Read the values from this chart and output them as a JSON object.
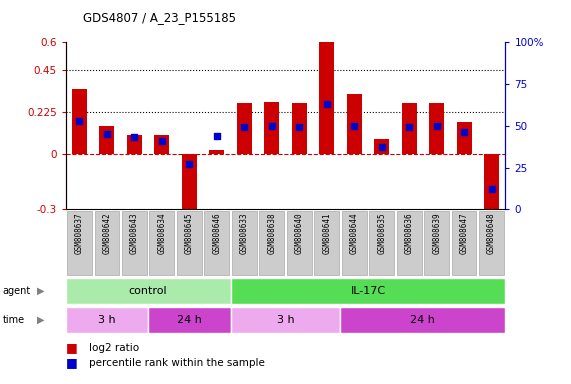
{
  "title": "GDS4807 / A_23_P155185",
  "samples": [
    "GSM808637",
    "GSM808642",
    "GSM808643",
    "GSM808634",
    "GSM808645",
    "GSM808646",
    "GSM808633",
    "GSM808638",
    "GSM808640",
    "GSM808641",
    "GSM808644",
    "GSM808635",
    "GSM808636",
    "GSM808639",
    "GSM808647",
    "GSM808648"
  ],
  "log2_ratio": [
    0.35,
    0.15,
    0.1,
    0.1,
    -0.38,
    0.02,
    0.27,
    0.28,
    0.27,
    0.6,
    0.32,
    0.08,
    0.27,
    0.27,
    0.17,
    -0.33
  ],
  "percentile": [
    53,
    45,
    43,
    41,
    27,
    44,
    49,
    50,
    49,
    63,
    50,
    37,
    49,
    50,
    46,
    12
  ],
  "bar_color": "#cc0000",
  "dot_color": "#0000cc",
  "ylim_left": [
    -0.3,
    0.6
  ],
  "ylim_right": [
    0,
    100
  ],
  "yticks_left": [
    -0.3,
    0.0,
    0.225,
    0.45,
    0.6
  ],
  "yticks_left_labels": [
    "-0.3",
    "0",
    "0.225",
    "0.45",
    "0.6"
  ],
  "yticks_right": [
    0,
    25,
    50,
    75,
    100
  ],
  "yticks_right_labels": [
    "0",
    "25",
    "50",
    "75",
    "100%"
  ],
  "hlines": [
    0.225,
    0.45
  ],
  "hline_zero": 0.0,
  "agent_groups": [
    {
      "label": "control",
      "start": 0,
      "end": 6,
      "color": "#aaeaaa"
    },
    {
      "label": "IL-17C",
      "start": 6,
      "end": 16,
      "color": "#55dd55"
    }
  ],
  "time_groups": [
    {
      "label": "3 h",
      "start": 0,
      "end": 3,
      "color": "#eeaaee"
    },
    {
      "label": "24 h",
      "start": 3,
      "end": 6,
      "color": "#cc44cc"
    },
    {
      "label": "3 h",
      "start": 6,
      "end": 10,
      "color": "#eeaaee"
    },
    {
      "label": "24 h",
      "start": 10,
      "end": 16,
      "color": "#cc44cc"
    }
  ],
  "bar_label_color": "#cc0000",
  "dot_label_color": "#0000cc",
  "bar_legend_label": "log2 ratio",
  "dot_legend_label": "percentile rank within the sample",
  "tick_color_left": "#cc0000",
  "tick_color_right": "#0000cc",
  "sample_box_color": "#cccccc",
  "sample_box_edge": "#aaaaaa"
}
